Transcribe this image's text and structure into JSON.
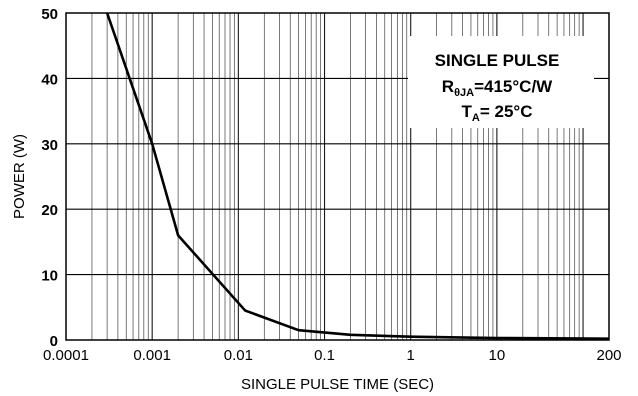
{
  "chart_data": {
    "type": "line",
    "xlabel": "SINGLE PULSE TIME (SEC)",
    "ylabel": "POWER (W)",
    "x_scale": "log",
    "xlim": [
      0.0001,
      200
    ],
    "ylim": [
      0,
      50
    ],
    "grid": true,
    "x_ticks": [
      0.0001,
      0.001,
      0.01,
      0.1,
      1,
      10,
      200
    ],
    "x_tick_labels": [
      "0.0001",
      "0.001",
      "0.01",
      "0.1",
      "1",
      "10",
      "200"
    ],
    "y_ticks": [
      0,
      10,
      20,
      30,
      40,
      50
    ],
    "y_tick_labels": [
      "0",
      "10",
      "20",
      "30",
      "40",
      "50"
    ],
    "x": [
      0.0003,
      0.001,
      0.002,
      0.012,
      0.05,
      0.2,
      1,
      10,
      200
    ],
    "series": [
      {
        "values": [
          50,
          30,
          16,
          4.5,
          1.5,
          0.8,
          0.5,
          0.3,
          0.2
        ]
      }
    ],
    "annotation": {
      "line1": "SINGLE PULSE",
      "line2_main": "R",
      "line2_sub": "θJA",
      "line2_rest": "=415°C/W",
      "line3_main": "T",
      "line3_sub": "A",
      "line3_rest": "= 25°C"
    },
    "colors": {
      "line": "#000000",
      "grid": "#000000",
      "background": "#ffffff"
    }
  }
}
